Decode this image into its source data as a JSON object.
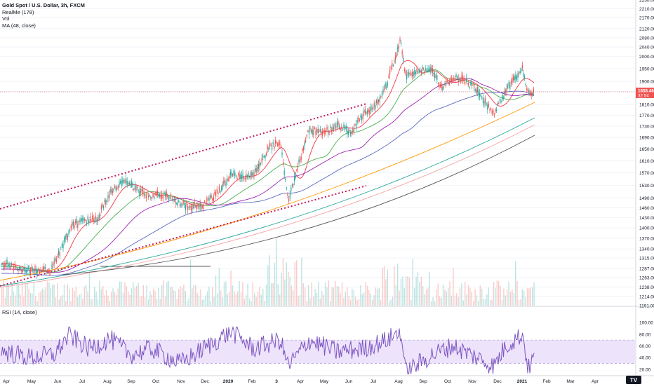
{
  "legend": {
    "symbol": "Gold Spot / U.S. Dollar, 3h, FXCM",
    "indicator_1": "RealMe (178)",
    "indicator_2": "Vol",
    "indicator_3": "MA (48, close)"
  },
  "rsi_legend": "RSI (14, close)",
  "price_tags": {
    "last_price": "1858.48",
    "countdown": "32:54"
  },
  "colors": {
    "up": "#26a69a",
    "down": "#ef5350",
    "rsi_line": "#7e57c2",
    "rsi_band": "#ede3fb",
    "channel": "#c2185b",
    "ma_red": "#f23645",
    "ma_green": "#4caf50",
    "ma_purple": "#9c27b0",
    "ma_blue": "#5c6bc0",
    "ma_orange": "#ff9800",
    "ma_teal": "#26a69a",
    "ma_pink": "#f4a6a6",
    "ma_gray": "#555555"
  },
  "chart_data": [
    {
      "type": "line",
      "title": "Gold Spot / U.S. Dollar, 3h, FXCM",
      "x_axis_labels": [
        "Apr",
        "May",
        "Jun",
        "Jul",
        "Aug",
        "Sep",
        "Oct",
        "Nov",
        "Dec",
        "2020",
        "Feb",
        "3",
        "Apr",
        "May",
        "Jun",
        "Jul",
        "Aug",
        "Sep",
        "Oct",
        "Nov",
        "Dec",
        "2021",
        "Feb",
        "Mar",
        "Apr"
      ],
      "y_axis_ticks": [
        1191.0,
        1214.0,
        1238.0,
        1263.0,
        1287.0,
        1315.0,
        1340.0,
        1370.0,
        1400.0,
        1430.0,
        1460.0,
        1490.0,
        1530.0,
        1570.0,
        1610.0,
        1650.0,
        1690.0,
        1730.0,
        1770.0,
        1810.0,
        1860.0,
        1900.0,
        1950.0,
        2000.0,
        2040.0,
        2080.0,
        2120.0,
        2170.0,
        2210.0,
        2250.0
      ],
      "y_scale": "log",
      "ylim": [
        1191,
        2250
      ],
      "series": [
        {
          "name": "Gold Spot / U.S. Dollar",
          "x": [
            "2019-04-01",
            "2019-04-20",
            "2019-05-10",
            "2019-05-28",
            "2019-06-10",
            "2019-06-25",
            "2019-07-10",
            "2019-07-25",
            "2019-08-10",
            "2019-08-25",
            "2019-09-05",
            "2019-09-20",
            "2019-10-01",
            "2019-10-20",
            "2019-11-05",
            "2019-11-20",
            "2019-12-05",
            "2019-12-25",
            "2020-01-08",
            "2020-01-20",
            "2020-02-05",
            "2020-02-24",
            "2020-03-09",
            "2020-03-19",
            "2020-04-01",
            "2020-04-14",
            "2020-05-01",
            "2020-05-18",
            "2020-06-05",
            "2020-06-20",
            "2020-07-05",
            "2020-07-20",
            "2020-08-06",
            "2020-08-12",
            "2020-08-25",
            "2020-09-15",
            "2020-09-25",
            "2020-10-10",
            "2020-10-25",
            "2020-11-09",
            "2020-11-30",
            "2020-12-15",
            "2021-01-05",
            "2021-01-12",
            "2021-01-20"
          ],
          "values": [
            1300,
            1285,
            1282,
            1280,
            1340,
            1410,
            1420,
            1425,
            1510,
            1540,
            1530,
            1505,
            1495,
            1500,
            1470,
            1465,
            1470,
            1515,
            1565,
            1555,
            1565,
            1655,
            1675,
            1480,
            1600,
            1720,
            1705,
            1735,
            1710,
            1775,
            1800,
            1890,
            2070,
            1925,
            1935,
            1950,
            1870,
            1915,
            1900,
            1865,
            1775,
            1865,
            1950,
            1850,
            1858
          ]
        }
      ],
      "annotations": [
        "Upper channel line (dotted)",
        "Lower channel line (dotted)"
      ]
    },
    {
      "type": "line",
      "title": "RSI (14, close)",
      "y_axis_ticks": [
        20.0,
        40.0,
        60.0,
        80.0,
        100.0
      ],
      "ylim": [
        0,
        100
      ],
      "band": [
        30,
        70
      ],
      "series": [
        {
          "name": "RSI",
          "x": [
            "2019-04-01",
            "2019-05-01",
            "2019-06-01",
            "2019-06-20",
            "2019-07-15",
            "2019-08-10",
            "2019-09-05",
            "2019-10-01",
            "2019-11-05",
            "2019-12-05",
            "2020-01-08",
            "2020-02-05",
            "2020-03-09",
            "2020-03-19",
            "2020-04-14",
            "2020-05-18",
            "2020-06-20",
            "2020-07-20",
            "2020-08-06",
            "2020-08-12",
            "2020-09-15",
            "2020-10-10",
            "2020-11-09",
            "2020-11-30",
            "2020-12-15",
            "2021-01-05",
            "2021-01-12",
            "2021-01-20"
          ],
          "values": [
            50,
            40,
            45,
            78,
            55,
            72,
            45,
            55,
            30,
            55,
            85,
            55,
            70,
            25,
            70,
            50,
            55,
            70,
            85,
            15,
            45,
            60,
            40,
            25,
            60,
            80,
            20,
            45
          ]
        }
      ]
    }
  ],
  "footer": {
    "tv_logo": "TV"
  }
}
